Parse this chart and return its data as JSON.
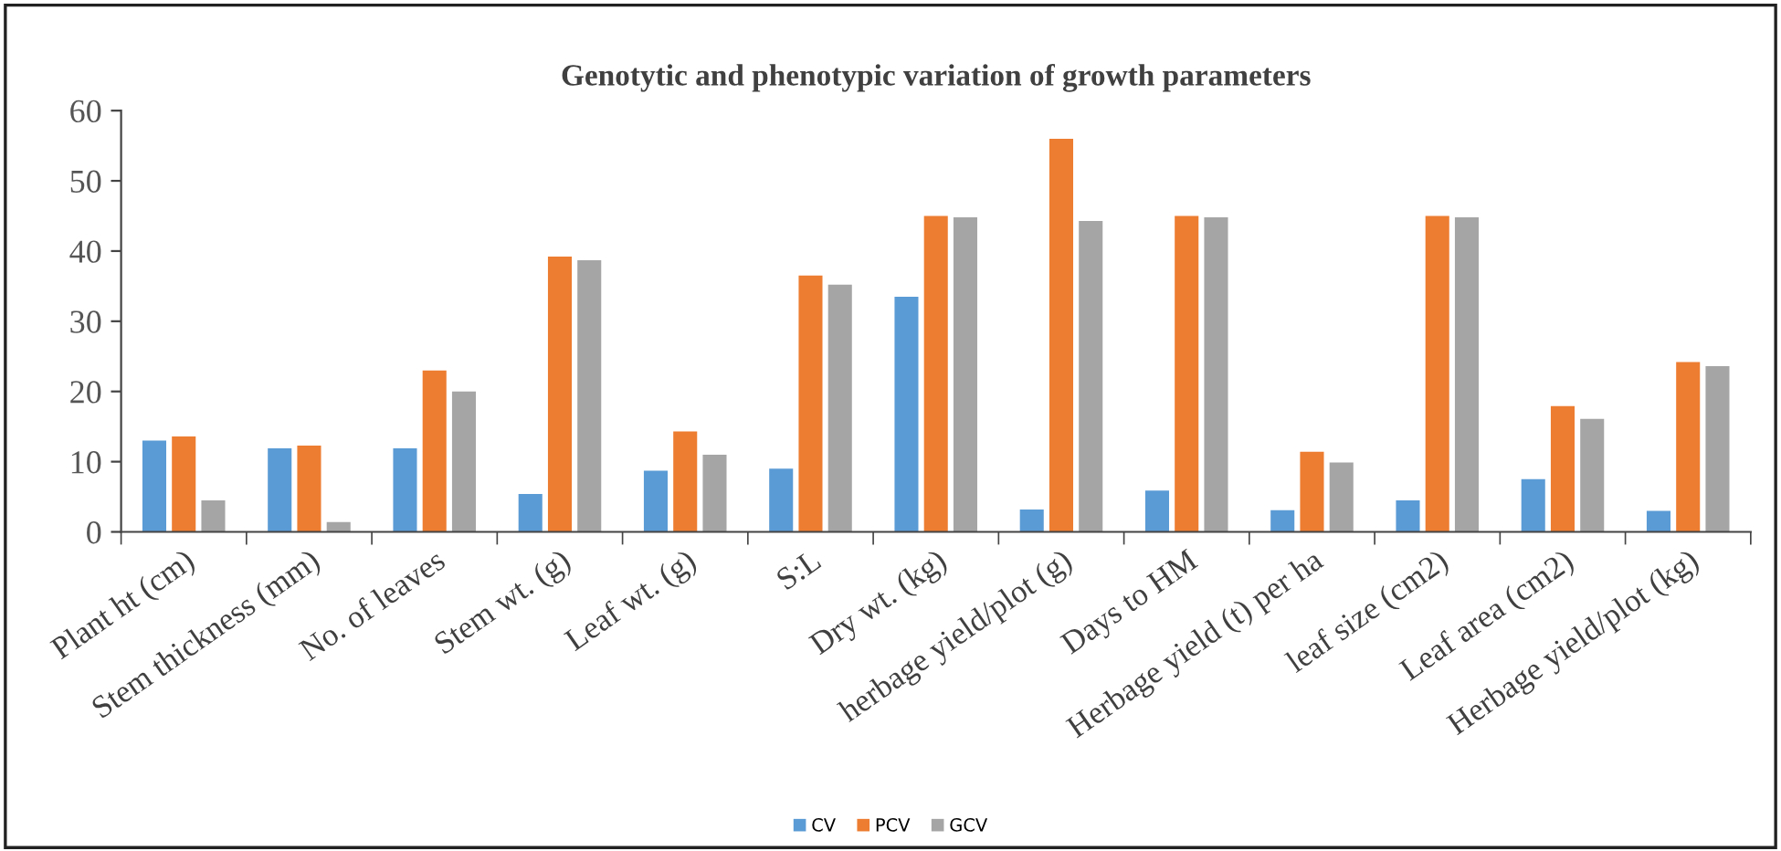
{
  "chart_data": {
    "type": "bar",
    "title": "Genotytic and phenotypic variation of growth parameters",
    "categories": [
      "Plant ht (cm)",
      "Stem thickness (mm)",
      "No. of leaves",
      "Stem wt. (g)",
      "Leaf wt. (g)",
      "S:L",
      "Dry wt. (kg)",
      "herbage yield/plot (g)",
      "Days to HM",
      "Herbage yield (t) per ha",
      "leaf size (cm2)",
      "Leaf area (cm2)",
      "Herbage yield/plot (kg)"
    ],
    "series": [
      {
        "name": "CV",
        "color": "#5b9bd5",
        "values": [
          13.0,
          11.9,
          11.9,
          5.4,
          8.7,
          9.0,
          33.5,
          3.2,
          5.9,
          3.1,
          4.5,
          7.5,
          3.0
        ]
      },
      {
        "name": "PCV",
        "color": "#ed7d31",
        "values": [
          13.6,
          12.3,
          23.0,
          39.2,
          14.3,
          36.5,
          45.0,
          56.0,
          45.0,
          11.4,
          45.0,
          17.9,
          24.2
        ]
      },
      {
        "name": "GCV",
        "color": "#a5a5a5",
        "values": [
          4.5,
          1.4,
          20.0,
          38.7,
          11.0,
          35.2,
          44.8,
          44.3,
          44.8,
          9.9,
          44.8,
          16.1,
          23.6
        ]
      }
    ],
    "ylim": [
      0,
      60
    ],
    "yticks": [
      0,
      10,
      20,
      30,
      40,
      50,
      60
    ],
    "grid": false,
    "legend": "bottom"
  }
}
